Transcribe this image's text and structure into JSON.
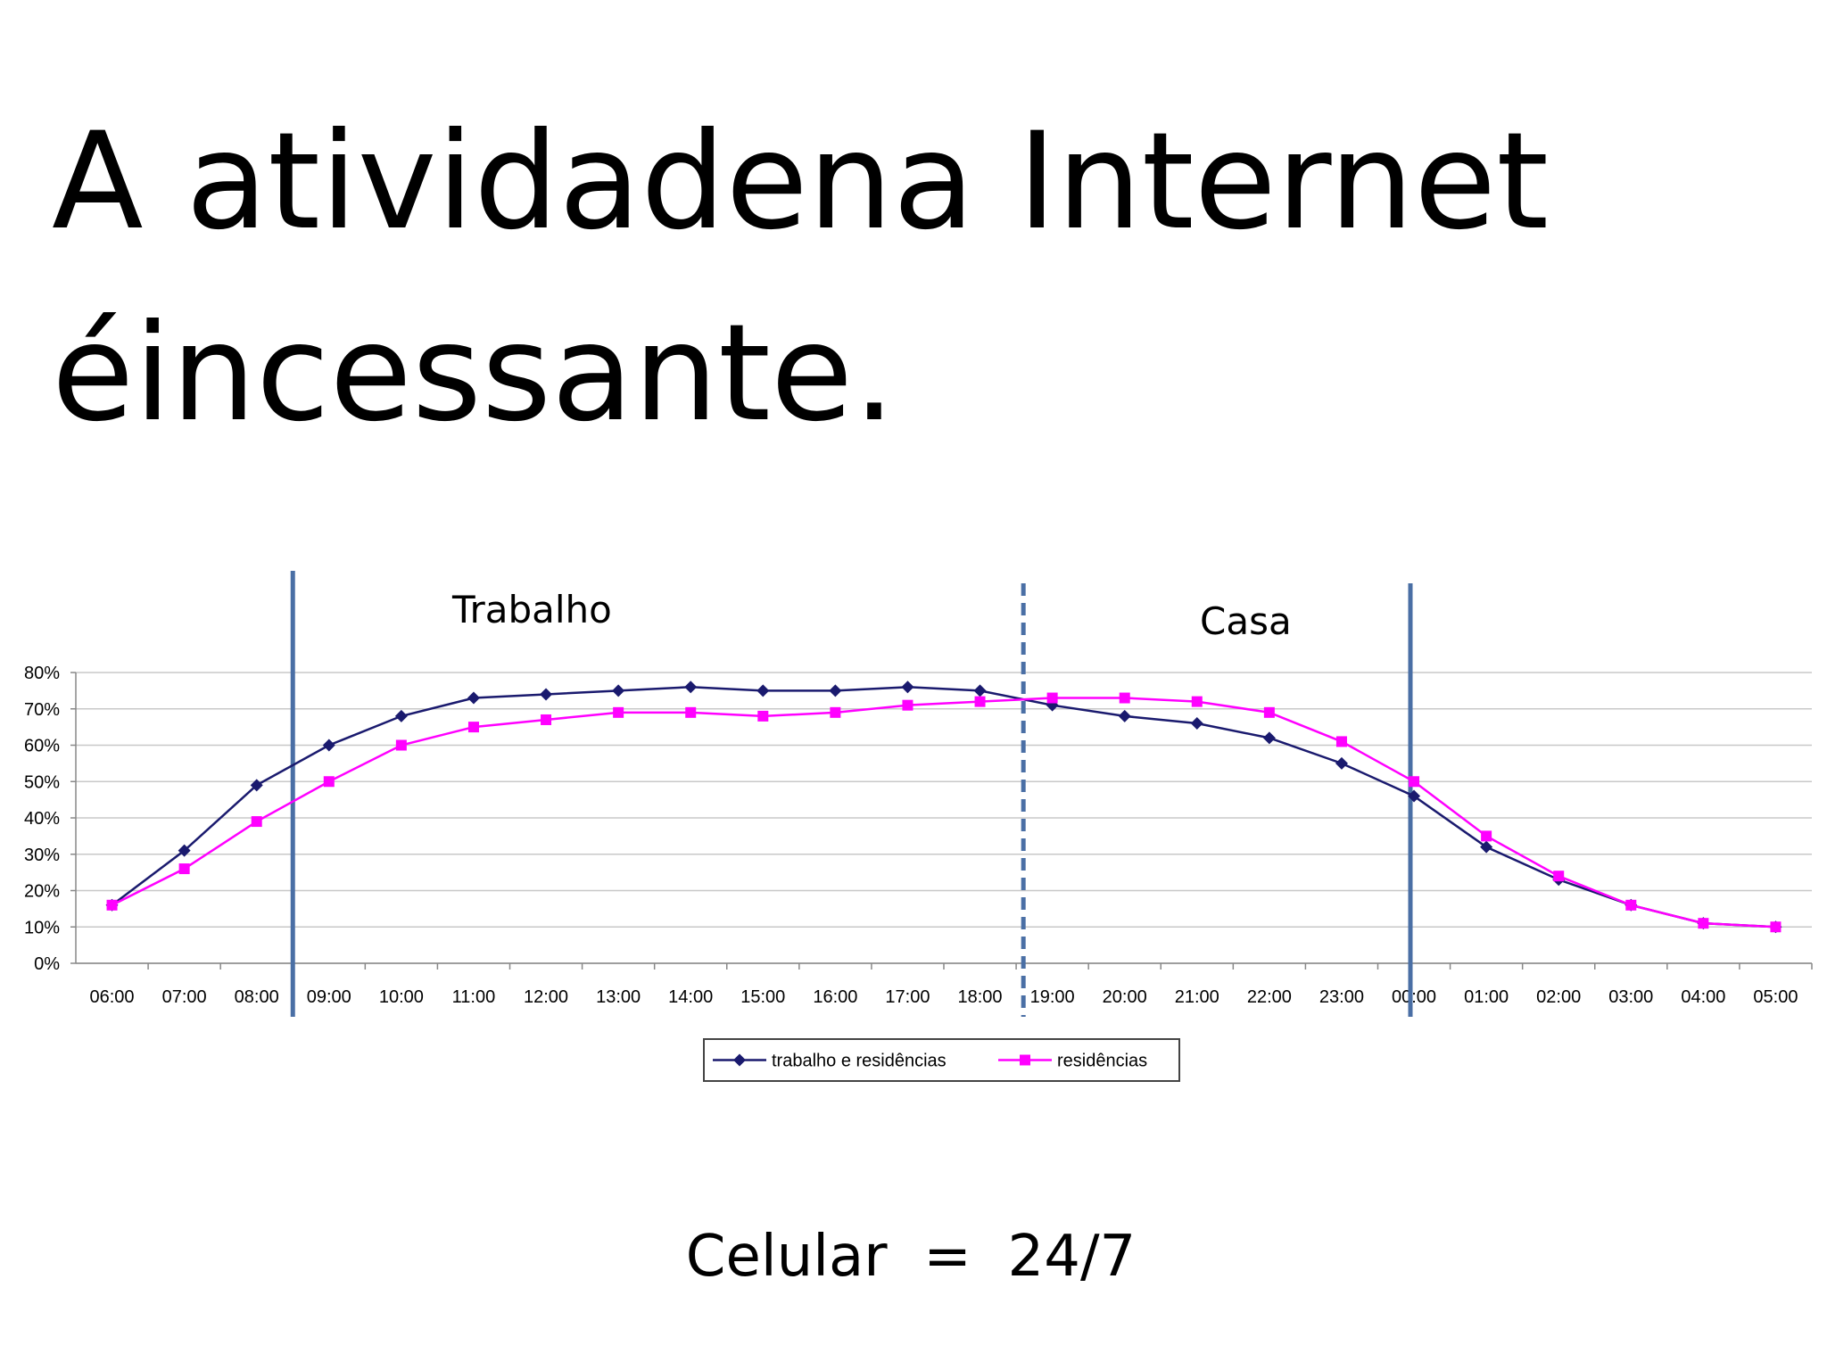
{
  "slide": {
    "title_lines": [
      "A atividadena Internet",
      "éincessante."
    ],
    "footer": "Celular  =  24/7"
  },
  "chart_data": {
    "type": "line",
    "annotations": [
      "Trabalho",
      "Casa"
    ],
    "categories": [
      "06:00",
      "07:00",
      "08:00",
      "09:00",
      "10:00",
      "11:00",
      "12:00",
      "13:00",
      "14:00",
      "15:00",
      "16:00",
      "17:00",
      "18:00",
      "19:00",
      "20:00",
      "21:00",
      "22:00",
      "23:00",
      "00:00",
      "01:00",
      "02:00",
      "03:00",
      "04:00",
      "05:00"
    ],
    "series": [
      {
        "name": "trabalho e residências",
        "color": "#1a1a6e",
        "marker": "diamond",
        "values": [
          16,
          31,
          49,
          60,
          68,
          73,
          74,
          75,
          76,
          75,
          75,
          76,
          75,
          71,
          68,
          66,
          62,
          55,
          46,
          32,
          23,
          16,
          11,
          10
        ]
      },
      {
        "name": "residências",
        "color": "#ff00ff",
        "marker": "square",
        "values": [
          16,
          26,
          39,
          50,
          60,
          65,
          67,
          69,
          69,
          68,
          69,
          71,
          72,
          73,
          73,
          72,
          69,
          61,
          50,
          35,
          24,
          16,
          11,
          10
        ]
      }
    ],
    "ylim": [
      0,
      80
    ],
    "yticks": [
      {
        "value": 0,
        "label": "0%"
      },
      {
        "value": 10,
        "label": "10%"
      },
      {
        "value": 20,
        "label": "20%"
      },
      {
        "value": 30,
        "label": "30%"
      },
      {
        "value": 40,
        "label": "40%"
      },
      {
        "value": 50,
        "label": "50%"
      },
      {
        "value": 60,
        "label": "60%"
      },
      {
        "value": 70,
        "label": "70%"
      },
      {
        "value": 80,
        "label": "80%"
      }
    ],
    "grid": true,
    "legend": "bottom"
  }
}
